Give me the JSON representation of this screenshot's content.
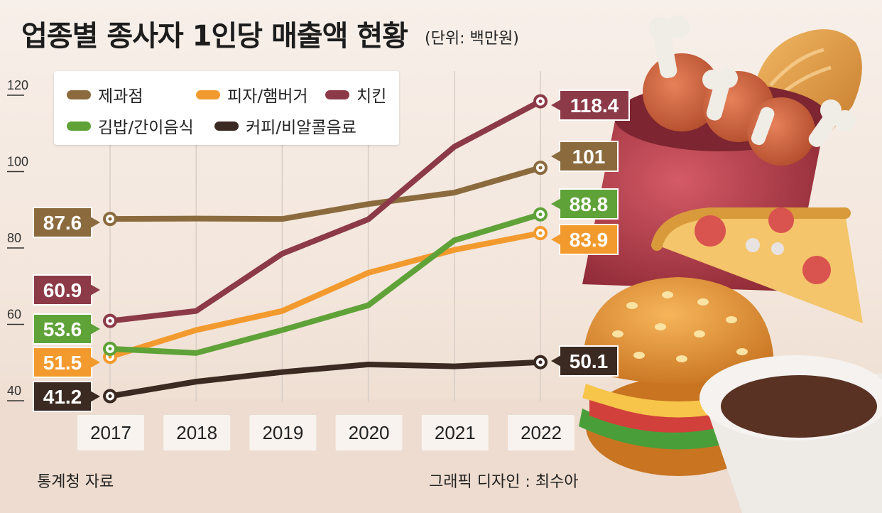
{
  "header": {
    "title": "업종별 종사자 1인당 매출액 현황",
    "unit": "(단위: 백만원)"
  },
  "footer": {
    "source": "통계청 자료",
    "credit": "그래픽 디자인 : 최수아"
  },
  "chart_data": {
    "type": "line",
    "x": [
      "2017",
      "2018",
      "2019",
      "2020",
      "2021",
      "2022"
    ],
    "ylim": [
      40,
      120
    ],
    "yticks": [
      40,
      60,
      80,
      100,
      120
    ],
    "legend_position": "top-left",
    "series": [
      {
        "name": "제과점",
        "color": "#8b6b3e",
        "values": [
          87.6,
          87.7,
          87.6,
          91.5,
          94.5,
          101
        ],
        "labels": [
          "87.6",
          "101"
        ]
      },
      {
        "name": "피자/햄버거",
        "color": "#f39a2f",
        "values": [
          51.5,
          58.5,
          63.5,
          73.5,
          79.5,
          83.9
        ],
        "labels": [
          "51.5",
          "83.9"
        ]
      },
      {
        "name": "치킨",
        "color": "#8c3a47",
        "values": [
          60.9,
          63.5,
          78.5,
          87.5,
          106.5,
          118.4
        ],
        "labels": [
          "60.9",
          "118.4"
        ]
      },
      {
        "name": "김밥/간이음식",
        "color": "#5fa238",
        "values": [
          53.6,
          52.5,
          58.5,
          65.0,
          82.0,
          88.8
        ],
        "labels": [
          "53.6",
          "88.8"
        ]
      },
      {
        "name": "커피/비알콜음료",
        "color": "#3b2a22",
        "values": [
          41.2,
          45.0,
          47.5,
          49.5,
          49.0,
          50.1
        ],
        "labels": [
          "41.2",
          "50.1"
        ]
      }
    ]
  }
}
